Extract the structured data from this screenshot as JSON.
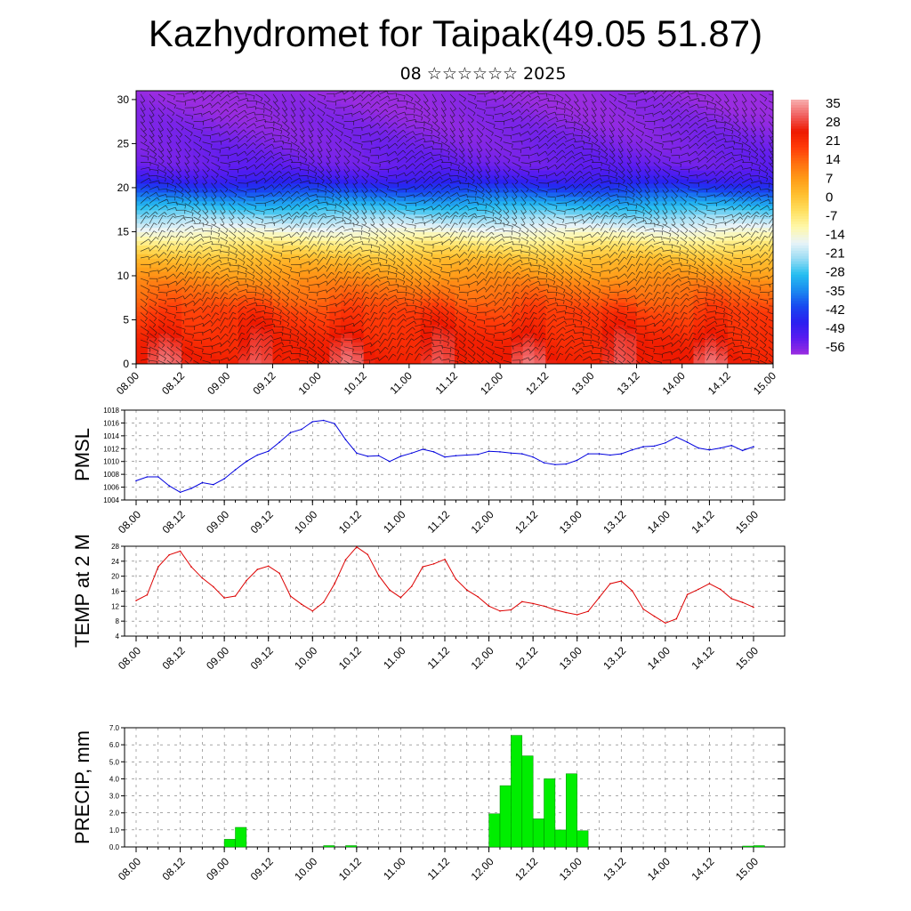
{
  "page": {
    "title": "Kazhydromet for Taipak(49.05 51.87)",
    "subtitle": "08 ☆☆☆☆☆☆ 2025"
  },
  "colors": {
    "pmsl_line": "#0000dd",
    "temp_line": "#dd0000",
    "precip_bar": "#00ee00",
    "colorbar": [
      "#9a2ce0",
      "#5a1cf0",
      "#2a20f0",
      "#1848f0",
      "#1a8af0",
      "#26bef0",
      "#9adcf4",
      "#eaf4f8",
      "#fff8a8",
      "#ffe060",
      "#ffc030",
      "#ff9c18",
      "#ff7010",
      "#ff3a08",
      "#ee1800",
      "#f06060",
      "#f8b0b0"
    ]
  },
  "chart_data": [
    {
      "type": "heatmap",
      "title": "",
      "xlabel": "",
      "ylabel": "",
      "x_tick_labels": [
        "08.00",
        "08.12",
        "09.00",
        "09.12",
        "10.00",
        "10.12",
        "11.00",
        "11.12",
        "12.00",
        "12.12",
        "13.00",
        "13.12",
        "14.00",
        "14.12",
        "15.00"
      ],
      "y_tick_labels": [
        "0",
        "5",
        "10",
        "15",
        "20",
        "25",
        "30"
      ],
      "ylim": [
        0,
        31
      ],
      "colorbar_labels": [
        "35",
        "28",
        "21",
        "14",
        "7",
        "0",
        "-7",
        "-14",
        "-21",
        "-28",
        "-35",
        "-42",
        "-49",
        "-56"
      ],
      "colorbar_range": [
        -60,
        39
      ],
      "profile_levels": [
        0,
        3,
        6,
        9,
        12,
        15,
        18,
        21,
        22.5,
        24,
        27,
        31
      ],
      "profile_values": [
        28,
        25,
        20,
        12,
        2,
        -14,
        -30,
        -50,
        -55,
        -56,
        -58,
        -60
      ],
      "daily_anomaly_peaks": [
        "08.06",
        "10.06",
        "12.00"
      ]
    },
    {
      "type": "line",
      "ylabel": "PMSL",
      "x_tick_labels": [
        "08.00",
        "08.12",
        "09.00",
        "09.12",
        "10.00",
        "10.12",
        "11.00",
        "11.12",
        "12.00",
        "12.12",
        "13.00",
        "13.12",
        "14.00",
        "14.12",
        "15.00"
      ],
      "y_tick_labels": [
        "1004",
        "1006",
        "1008",
        "1010",
        "1012",
        "1014",
        "1016",
        "1018"
      ],
      "ylim": [
        1004,
        1018
      ],
      "x_hours": [
        0,
        3,
        6,
        9,
        12,
        15,
        18,
        21,
        24,
        27,
        30,
        33,
        36,
        39,
        42,
        45,
        48,
        51,
        54,
        57,
        60,
        63,
        66,
        69,
        72,
        75,
        78,
        81,
        84,
        87,
        90,
        93,
        96,
        99,
        102,
        105,
        108,
        111,
        114,
        117,
        120,
        123,
        126,
        129,
        132,
        135,
        138,
        141,
        144,
        147,
        150,
        153,
        156,
        159,
        162,
        165,
        168
      ],
      "series": [
        {
          "values": [
            1007.0,
            1007.6,
            1007.6,
            1006.2,
            1005.2,
            1005.8,
            1006.7,
            1006.4,
            1007.3,
            1008.7,
            1010.0,
            1011.0,
            1011.6,
            1013.0,
            1014.5,
            1015.0,
            1016.2,
            1016.4,
            1015.9,
            1013.4,
            1011.3,
            1010.8,
            1010.9,
            1010.0,
            1010.8,
            1011.3,
            1011.9,
            1011.5,
            1010.7,
            1010.9,
            1011.0,
            1011.1,
            1011.6,
            1011.5,
            1011.3,
            1011.2,
            1010.7,
            1009.8,
            1009.5,
            1009.6,
            1010.2,
            1011.2,
            1011.2,
            1011.0,
            1011.2,
            1011.8,
            1012.3,
            1012.4,
            1012.9,
            1013.8,
            1013.0,
            1012.1,
            1011.8,
            1012.1,
            1012.5,
            1011.7,
            1012.3
          ]
        }
      ]
    },
    {
      "type": "line",
      "ylabel": "TEMP at 2 M",
      "x_tick_labels": [
        "08.00",
        "08.12",
        "09.00",
        "09.12",
        "10.00",
        "10.12",
        "11.00",
        "11.12",
        "12.00",
        "12.12",
        "13.00",
        "13.12",
        "14.00",
        "14.12",
        "15.00"
      ],
      "y_tick_labels": [
        "4",
        "8",
        "12",
        "16",
        "20",
        "24",
        "28"
      ],
      "ylim": [
        4,
        28
      ],
      "x_hours": [
        0,
        3,
        6,
        9,
        12,
        15,
        18,
        21,
        24,
        27,
        30,
        33,
        36,
        39,
        42,
        45,
        48,
        51,
        54,
        57,
        60,
        63,
        66,
        69,
        72,
        75,
        78,
        81,
        84,
        87,
        90,
        93,
        96,
        99,
        102,
        105,
        108,
        111,
        114,
        117,
        120,
        123,
        126,
        129,
        132,
        135,
        138,
        141,
        144,
        147,
        150,
        153,
        156,
        159,
        162,
        165,
        168
      ],
      "series": [
        {
          "values": [
            13.5,
            15.0,
            22.5,
            25.7,
            26.7,
            22.5,
            19.5,
            17.2,
            14.2,
            14.7,
            18.8,
            21.8,
            22.7,
            20.8,
            14.7,
            12.5,
            10.7,
            13.0,
            18.0,
            24.4,
            27.8,
            25.8,
            20.2,
            16.3,
            14.3,
            17.3,
            22.5,
            23.3,
            24.5,
            19.2,
            16.3,
            14.5,
            12.0,
            10.7,
            11.0,
            13.2,
            12.7,
            12.0,
            11.0,
            10.3,
            9.7,
            10.6,
            14.3,
            18.0,
            18.7,
            16.1,
            11.2,
            9.3,
            7.5,
            8.6,
            15.1,
            16.5,
            18.0,
            16.5,
            14.0,
            13.0,
            11.7
          ]
        }
      ]
    },
    {
      "type": "bar",
      "ylabel": "PRECIP, mm",
      "x_tick_labels": [
        "08.00",
        "08.12",
        "09.00",
        "09.12",
        "10.00",
        "10.12",
        "11.00",
        "11.12",
        "12.00",
        "12.12",
        "13.00",
        "13.12",
        "14.00",
        "14.12",
        "15.00"
      ],
      "y_tick_labels": [
        "0.0",
        "1.0",
        "2.0",
        "3.0",
        "4.0",
        "5.0",
        "6.0",
        "7.0"
      ],
      "ylim": [
        0,
        7
      ],
      "x_hours": [
        27,
        30,
        30.5,
        51,
        57,
        72,
        75,
        117,
        118,
        119,
        120,
        121,
        122,
        123,
        124,
        125,
        166,
        167,
        168
      ],
      "values_note_removed": true,
      "bars": [
        {
          "start": 27,
          "value": 0.03
        },
        {
          "start": 24,
          "value": 0.45
        },
        {
          "start": 27,
          "value": 1.15
        },
        {
          "start": 51,
          "value": 0.08
        },
        {
          "start": 57,
          "value": 0.08
        },
        {
          "start": 96,
          "value": 1.95
        },
        {
          "start": 99,
          "value": 3.6
        },
        {
          "start": 102,
          "value": 6.55
        },
        {
          "start": 105,
          "value": 5.35
        },
        {
          "start": 108,
          "value": 1.65
        },
        {
          "start": 111,
          "value": 4.0
        },
        {
          "start": 114,
          "value": 1.0
        },
        {
          "start": 117,
          "value": 4.3
        },
        {
          "start": 120,
          "value": 0.95
        },
        {
          "start": 165,
          "value": 0.05
        },
        {
          "start": 168,
          "value": 0.08
        }
      ]
    }
  ]
}
